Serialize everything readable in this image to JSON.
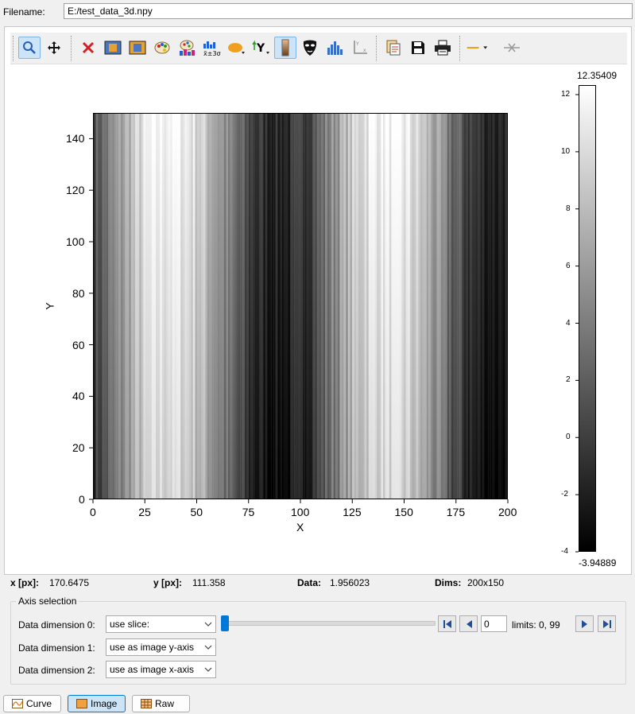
{
  "filename": {
    "label": "Filename:",
    "value": "E:/test_data_3d.npy"
  },
  "toolbar": {
    "tools": [
      "zoom-icon",
      "pan-icon",
      "clear-icon",
      "crop-icon",
      "crop-icon-2",
      "colormap-icon",
      "colormap-range-icon",
      "stats-icon",
      "roi-icon",
      "y-axis-icon",
      "colorbar-icon",
      "mask-icon",
      "histogram-icon",
      "axes-icon",
      "copy-icon",
      "save-icon",
      "print-icon",
      "line-icon",
      "hide-cursor-icon"
    ]
  },
  "chart_data": {
    "type": "heatmap",
    "xlabel": "X",
    "ylabel": "Y",
    "xlim": [
      0,
      200
    ],
    "ylim": [
      0,
      150
    ],
    "xticks": [
      "0",
      "25",
      "50",
      "75",
      "100",
      "125",
      "150",
      "175",
      "200"
    ],
    "yticks": [
      "0",
      "20",
      "40",
      "60",
      "80",
      "100",
      "120",
      "140"
    ],
    "colormap": "gray",
    "colorbar": {
      "max_label": "12.35409",
      "min_label": "-3.94889",
      "min": -3.94889,
      "max": 12.35409,
      "ticks": [
        "-4",
        "-2",
        "0",
        "2",
        "4",
        "6",
        "8",
        "10",
        "12"
      ]
    }
  },
  "status": {
    "x_key": "x [px]:",
    "x_val": "170.6475",
    "y_key": "y [px]:",
    "y_val": "111.358",
    "data_key": "Data:",
    "data_val": "1.956023",
    "dims_key": "Dims:",
    "dims_val": "200x150"
  },
  "axis_selection": {
    "title": "Axis selection",
    "dims": [
      {
        "label": "Data dimension 0:",
        "value": "use slice:"
      },
      {
        "label": "Data dimension 1:",
        "value": "use as image y-axis"
      },
      {
        "label": "Data dimension 2:",
        "value": "use as image x-axis"
      }
    ],
    "slice_value": "0",
    "limits": "limits: 0, 99",
    "slider_fraction": 0.0
  },
  "tabs": [
    {
      "label": "Curve",
      "icon": "curve-icon"
    },
    {
      "label": "Image",
      "icon": "image-icon"
    },
    {
      "label": "Raw",
      "icon": "table-icon"
    }
  ]
}
